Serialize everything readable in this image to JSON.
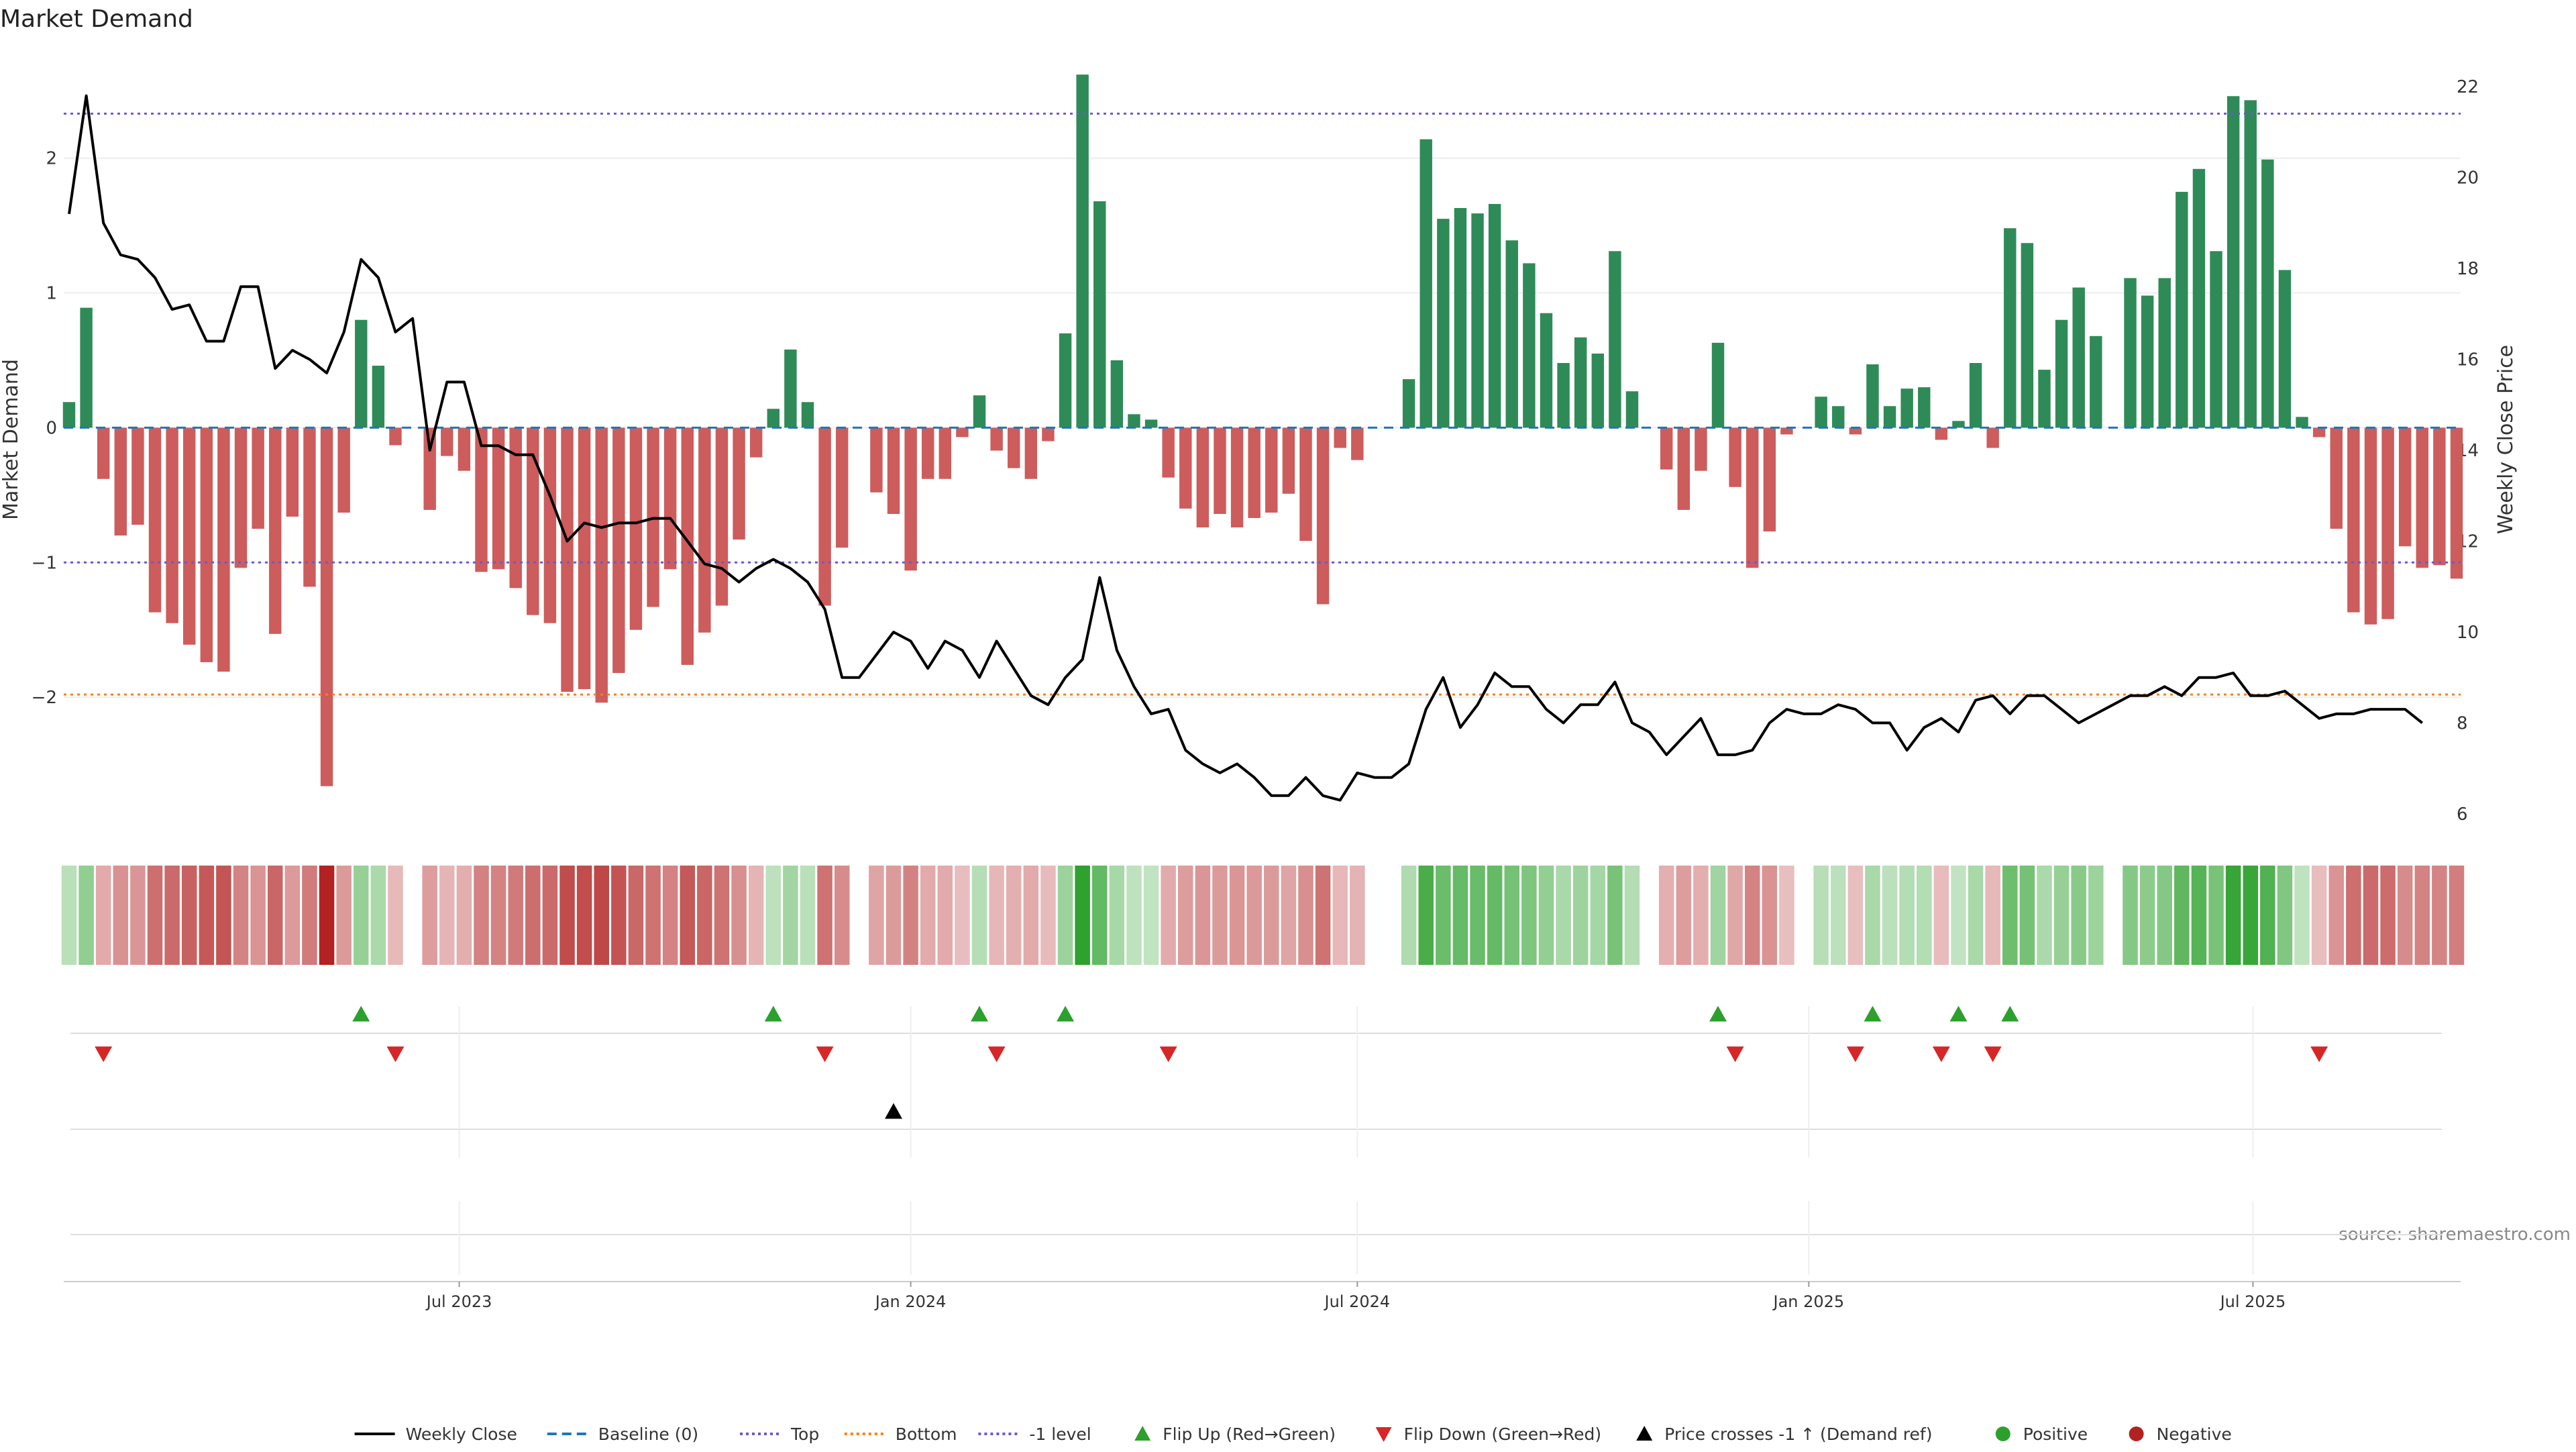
{
  "chart_data": {
    "type": "bar",
    "title": "Market Demand",
    "ylabel": "Market Demand",
    "y2label": "Weekly Close Price",
    "ylim": [
      -3.0,
      2.8
    ],
    "y2lim": [
      5.6,
      22.8
    ],
    "yticks": [
      -2,
      -1,
      0,
      1,
      2
    ],
    "y2ticks": [
      6,
      8,
      10,
      12,
      14,
      16,
      18,
      20,
      22
    ],
    "x_start": "2023-01-23",
    "x_step_days": 7,
    "x_end": "2025-10-13",
    "xticks": [
      {
        "date": "2023-07-01",
        "label": "Jul 2023"
      },
      {
        "date": "2024-01-01",
        "label": "Jan 2024"
      },
      {
        "date": "2024-07-01",
        "label": "Jul 2024"
      },
      {
        "date": "2025-01-01",
        "label": "Jan 2025"
      },
      {
        "date": "2025-07-01",
        "label": "Jul 2025"
      }
    ],
    "reference_lines": {
      "top": 2.33,
      "bottom": -1.98,
      "minus_one": -1.0,
      "baseline": 0
    },
    "series": [
      {
        "name": "Market Demand",
        "values": [
          0.19,
          0.89,
          -0.38,
          -0.8,
          -0.72,
          -1.37,
          -1.45,
          -1.61,
          -1.74,
          -1.81,
          -1.04,
          -0.75,
          -1.53,
          -0.66,
          -1.18,
          -2.66,
          -0.63,
          0.8,
          0.46,
          -0.13,
          0.0,
          -0.61,
          -0.21,
          -0.32,
          -1.07,
          -1.05,
          -1.19,
          -1.39,
          -1.45,
          -1.96,
          -1.94,
          -2.04,
          -1.82,
          -1.5,
          -1.33,
          -1.05,
          -1.76,
          -1.52,
          -1.32,
          -0.83,
          -0.22,
          0.14,
          0.58,
          0.19,
          -1.32,
          -0.89,
          0.0,
          -0.48,
          -0.64,
          -1.06,
          -0.38,
          -0.38,
          -0.07,
          0.24,
          -0.17,
          -0.3,
          -0.38,
          -0.1,
          0.7,
          2.62,
          1.68,
          0.5,
          0.1,
          0.06,
          -0.37,
          -0.6,
          -0.74,
          -0.64,
          -0.74,
          -0.67,
          -0.63,
          -0.49,
          -0.84,
          -1.31,
          -0.15,
          -0.24,
          0.0,
          0.0,
          0.36,
          2.14,
          1.55,
          1.63,
          1.59,
          1.66,
          1.39,
          1.22,
          0.85,
          0.48,
          0.67,
          0.55,
          1.31,
          0.27,
          0.0,
          -0.31,
          -0.61,
          -0.32,
          0.63,
          -0.44,
          -1.04,
          -0.77,
          -0.05,
          0.0,
          0.23,
          0.16,
          -0.05,
          0.47,
          0.16,
          0.29,
          0.3,
          -0.09,
          0.05,
          0.48,
          -0.15,
          1.48,
          1.37,
          0.43,
          0.8,
          1.04,
          0.68,
          0.0,
          1.11,
          0.98,
          1.11,
          1.75,
          1.92,
          1.31,
          2.46,
          2.43,
          1.99,
          1.17,
          0.08,
          -0.07,
          -0.75,
          -1.37,
          -1.46,
          -1.42,
          -0.88,
          -1.04,
          -1.02,
          -1.12
        ]
      },
      {
        "name": "Weekly Close",
        "values": [
          19.2,
          21.8,
          19.0,
          18.3,
          18.2,
          17.8,
          17.1,
          17.2,
          16.4,
          16.4,
          17.6,
          17.6,
          15.8,
          16.2,
          16.0,
          15.7,
          16.6,
          18.2,
          17.8,
          16.6,
          16.9,
          14.0,
          15.5,
          15.5,
          14.1,
          14.1,
          13.9,
          13.9,
          13.0,
          12.0,
          12.4,
          12.3,
          12.4,
          12.4,
          12.5,
          12.5,
          12.0,
          11.5,
          11.4,
          11.1,
          11.4,
          11.6,
          11.4,
          11.1,
          10.5,
          9.0,
          9.0,
          9.5,
          10.0,
          9.8,
          9.2,
          9.8,
          9.6,
          9.0,
          9.8,
          9.2,
          8.6,
          8.4,
          9.0,
          9.4,
          11.2,
          9.6,
          8.8,
          8.2,
          8.3,
          7.4,
          7.1,
          6.9,
          7.1,
          6.8,
          6.4,
          6.4,
          6.8,
          6.4,
          6.3,
          6.9,
          6.8,
          6.8,
          7.1,
          8.3,
          9.0,
          7.9,
          8.4,
          9.1,
          8.8,
          8.8,
          8.3,
          8.0,
          8.4,
          8.4,
          8.9,
          8.0,
          7.8,
          7.3,
          7.7,
          8.1,
          7.3,
          7.3,
          7.4,
          8.0,
          8.3,
          8.2,
          8.2,
          8.4,
          8.3,
          8.0,
          8.0,
          7.4,
          7.9,
          8.1,
          7.8,
          8.5,
          8.6,
          8.2,
          8.6,
          8.6,
          8.3,
          8.0,
          8.2,
          8.4,
          8.6,
          8.6,
          8.8,
          8.6,
          9.0,
          9.0,
          9.1,
          8.6,
          8.6,
          8.7,
          8.4,
          8.1,
          8.2,
          8.2,
          8.3,
          8.3,
          8.3,
          8.0
        ]
      }
    ],
    "price_cross_marker_index": 48,
    "legend": {
      "placement": "bottom",
      "items": [
        {
          "label": "Weekly Close",
          "symbol": "line-solid",
          "color": "#000000"
        },
        {
          "label": "Baseline (0)",
          "symbol": "line-dashed",
          "color": "#1f77b4"
        },
        {
          "label": "Top",
          "symbol": "line-dotted",
          "color": "#6a5acd"
        },
        {
          "label": "Bottom",
          "symbol": "line-dotted",
          "color": "#ff7f0e"
        },
        {
          "label": "-1 level",
          "symbol": "line-dotted",
          "color": "#6a5acd"
        },
        {
          "label": "Flip Up (Red→Green)",
          "symbol": "triangle-up",
          "color": "#2ca02c"
        },
        {
          "label": "Flip Down (Green→Red)",
          "symbol": "triangle-down",
          "color": "#d62728"
        },
        {
          "label": "Price crosses -1 ↑ (Demand ref)",
          "symbol": "triangle-up",
          "color": "#000000"
        },
        {
          "label": "Positive",
          "symbol": "dot",
          "color": "#2ca02c"
        },
        {
          "label": "Negative",
          "symbol": "dot",
          "color": "#b22222"
        }
      ]
    },
    "grid": true
  },
  "colors": {
    "positive_bar": "#2e8b57",
    "negative_bar": "#cd5c5c",
    "price_line": "#000000",
    "baseline": "#1f77b4",
    "top_line": "#6a5acd",
    "bottom_line": "#ff7f0e",
    "minus_one_line": "#6a5acd",
    "flip_up": "#2ca02c",
    "flip_down": "#d62728"
  },
  "source_text": "source: sharemaestro.com"
}
